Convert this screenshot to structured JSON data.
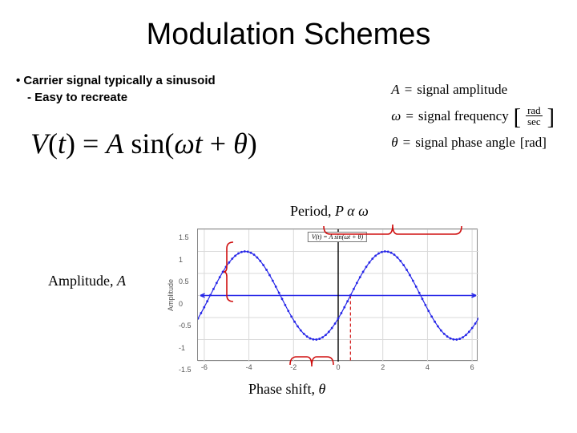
{
  "title": "Modulation Schemes",
  "bullets": {
    "line1": "Carrier signal typically a sinusoid",
    "line2": "Easy to recreate"
  },
  "formula": {
    "lhs_var": "V",
    "lhs_arg": "t",
    "rhs_coef": "A",
    "rhs_fn": "sin",
    "rhs_inner1": "ω",
    "rhs_inner2": "t",
    "rhs_plus": "+",
    "rhs_inner3": "θ"
  },
  "defs": {
    "a": {
      "sym": "A",
      "text": "signal amplitude"
    },
    "w": {
      "sym": "ω",
      "text": "signal frequency",
      "unit_num": "rad",
      "unit_den": "sec"
    },
    "th": {
      "sym": "θ",
      "text": "signal phase angle",
      "unit": "rad"
    }
  },
  "labels": {
    "period_pre": "Period, ",
    "period_var": "P",
    "period_rel": " α ",
    "period_omega": "ω",
    "amplitude_pre": "Amplitude, ",
    "amplitude_var": "A",
    "phase_pre": "Phase shift, ",
    "phase_var": "θ"
  },
  "chart": {
    "type": "line",
    "legend_text": "V(t) = A sin(ωt + θ)",
    "amplitude": 1.0,
    "phase_shift": -0.55,
    "angular_freq": 1.0,
    "x_domain": [
      -6.28318,
      6.28318
    ],
    "y_domain": [
      -1.5,
      1.5
    ],
    "yticks": [
      -1.5,
      -1.0,
      -0.5,
      0.0,
      0.5,
      1.0,
      1.5
    ],
    "xticks": [
      -6,
      -4,
      -2,
      0,
      2,
      4,
      6
    ],
    "ylabel": "Amplitude",
    "line_color": "#2727e8",
    "marker_color": "#2727e8",
    "grid_color": "#d9d9d9",
    "brace_color": "#d01010",
    "phase_axis_color": "#d01010",
    "tick_color": "#555555",
    "n_points": 90
  }
}
